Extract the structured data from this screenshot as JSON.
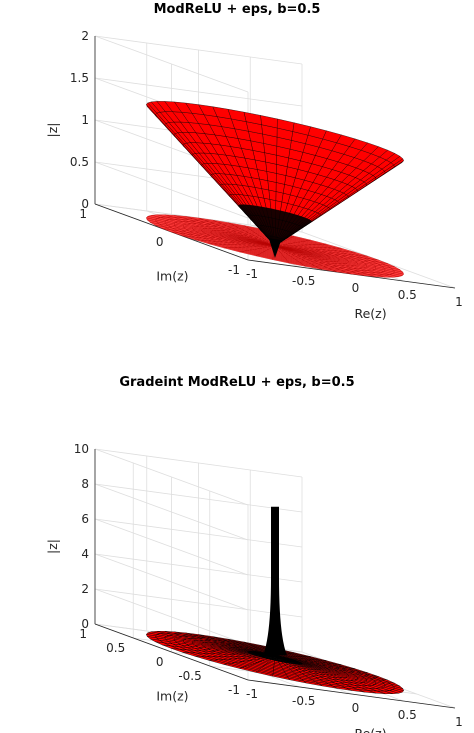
{
  "figure": {
    "colors": {
      "surface_red": "#ff0000",
      "mesh_black": "#000000",
      "grid": "#dedede",
      "axis": "#262626"
    }
  },
  "chart_data": [
    {
      "type": "surface3d",
      "title": "ModReLU + eps, b=0.5",
      "xlabel": "Re(z)",
      "ylabel": "Im(z)",
      "zlabel": "|z|",
      "xlim": [
        -1,
        1
      ],
      "ylim": [
        -1,
        1
      ],
      "zlim": [
        0,
        2
      ],
      "x_ticks": [
        -1,
        -0.5,
        0,
        0.5,
        1
      ],
      "x_tick_labels": [
        "-1",
        "-0.5",
        "0",
        "0.5",
        "1"
      ],
      "y_ticks": [
        -1,
        0,
        1
      ],
      "y_tick_labels": [
        "-1",
        "0",
        "1"
      ],
      "z_ticks": [
        0,
        0.5,
        1,
        1.5,
        2
      ],
      "z_tick_labels": [
        "0",
        "0.5",
        "1",
        "1.5",
        "2"
      ],
      "grid": true,
      "surface": {
        "description": "cone surface |z| = |x+iy| - b, shown as a red mesh over the unit disk with a flat disk at height 0",
        "radius_max": 1,
        "bias": 0.5,
        "rim_height": 1.35,
        "tip_height": 0
      }
    },
    {
      "type": "surface3d",
      "title": "Gradeint ModReLU + eps, b=0.5",
      "xlabel": "Re(z)",
      "ylabel": "Im(z)",
      "zlabel": "|z|",
      "xlim": [
        -1,
        1
      ],
      "ylim": [
        -1,
        1
      ],
      "zlim": [
        0,
        10
      ],
      "x_ticks": [
        -1,
        -0.5,
        0,
        0.5,
        1
      ],
      "x_tick_labels": [
        "-1",
        "-0.5",
        "0",
        "0.5",
        "1"
      ],
      "y_ticks": [
        -1,
        -0.5,
        0,
        0.5,
        1
      ],
      "y_tick_labels": [
        "-1",
        "-0.5",
        "0",
        "0.5",
        "1"
      ],
      "z_ticks": [
        0,
        2,
        4,
        6,
        8,
        10
      ],
      "z_tick_labels": [
        "0",
        "2",
        "4",
        "6",
        "8",
        "10"
      ],
      "grid": true,
      "surface": {
        "description": "gradient magnitude surface: near-zero flat disk with a sharp spike at the origin",
        "radius_max": 1,
        "bias": 0.5,
        "spike_height": 9.1
      }
    }
  ]
}
